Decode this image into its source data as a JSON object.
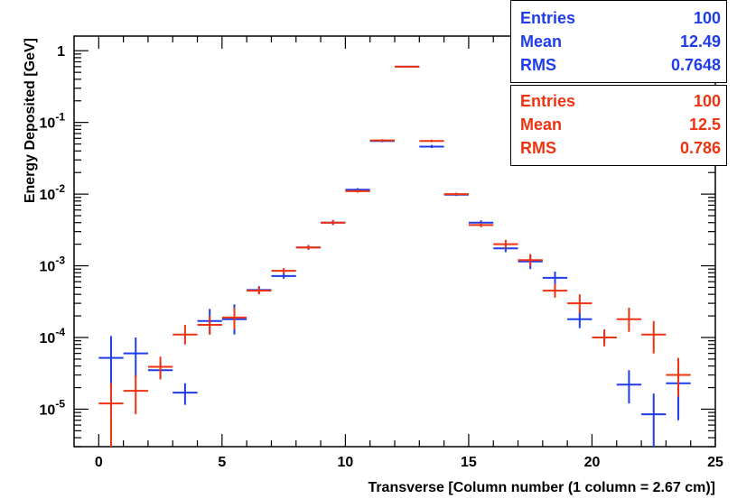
{
  "chart_data": {
    "type": "scatter",
    "xlabel": "Transverse [Column number (1 column = 2.67 cm)]",
    "ylabel": "Energy Deposited [GeV]",
    "xlim": [
      -1,
      25
    ],
    "ylim": [
      3e-06,
      1.6
    ],
    "yscale": "log",
    "x_ticks": [
      "0",
      "5",
      "10",
      "15",
      "20",
      "25"
    ],
    "y_ticks": [
      {
        "value": 1,
        "base": "1",
        "exp": ""
      },
      {
        "value": 0.1,
        "base": "10",
        "exp": "-1"
      },
      {
        "value": 0.01,
        "base": "10",
        "exp": "-2"
      },
      {
        "value": 0.001,
        "base": "10",
        "exp": "-3"
      },
      {
        "value": 0.0001,
        "base": "10",
        "exp": "-4"
      },
      {
        "value": 1e-05,
        "base": "10",
        "exp": "-5"
      }
    ],
    "grid": false,
    "colors": {
      "blue": "#1f3de8",
      "red": "#ee3311"
    },
    "series": [
      {
        "color": "#1f3de8",
        "x": [
          0.5,
          1.5,
          2.5,
          3.5,
          4.5,
          5.5,
          6.5,
          7.5,
          8.5,
          9.5,
          10.5,
          11.5,
          12.5,
          13.5,
          14.5,
          15.5,
          16.5,
          17.5,
          18.5,
          19.5,
          20.5,
          21.5,
          22.5,
          23.5
        ],
        "y": [
          5.2e-05,
          6e-05,
          3.5e-05,
          1.7e-05,
          0.00017,
          0.00018,
          0.00046,
          0.00072,
          0.0018,
          0.004,
          0.0115,
          0.055,
          0.6,
          0.046,
          0.0098,
          0.004,
          0.00175,
          0.00115,
          0.00068,
          0.00018,
          0.0001,
          2.2e-05,
          8.5e-06,
          2.3e-05
        ],
        "yerr_lo": [
          4.4e-05,
          3.2e-05,
          9e-06,
          5.5e-06,
          6e-05,
          7e-05,
          5e-05,
          6e-05,
          0.00013,
          0.0003,
          0.0005,
          0.002,
          0.0,
          0.002,
          0.0004,
          0.00025,
          0.0002,
          0.00025,
          0.00013,
          4.5e-05,
          1.8e-05,
          1e-05,
          5.5e-06,
          1.6e-05
        ],
        "yerr_hi": [
          5.3e-05,
          4e-05,
          1e-05,
          6e-06,
          8e-05,
          0.00011,
          6e-05,
          7e-05,
          0.00015,
          0.00035,
          0.0006,
          0.0025,
          0.0,
          0.0025,
          0.00045,
          0.0003,
          0.00025,
          0.0003,
          0.00015,
          5e-05,
          2e-05,
          1.3e-05,
          8e-06,
          2e-05
        ]
      },
      {
        "color": "#ee3311",
        "x": [
          0.5,
          1.5,
          2.5,
          3.5,
          4.5,
          5.5,
          6.5,
          7.5,
          8.5,
          9.5,
          10.5,
          11.5,
          12.5,
          13.5,
          14.5,
          15.5,
          16.5,
          17.5,
          18.5,
          19.5,
          20.5,
          21.5,
          22.5,
          23.5
        ],
        "y": [
          1.2e-05,
          1.8e-05,
          3.9e-05,
          0.00011,
          0.00015,
          0.00019,
          0.00045,
          0.00085,
          0.0018,
          0.004,
          0.011,
          0.056,
          0.6,
          0.055,
          0.01,
          0.0037,
          0.002,
          0.0012,
          0.00045,
          0.0003,
          0.0001,
          0.00018,
          0.00011,
          3e-05
        ],
        "yerr_lo": [
          9e-06,
          9.5e-06,
          1.3e-05,
          3e-05,
          4e-05,
          6e-05,
          5e-05,
          7e-05,
          0.00012,
          0.00025,
          0.0005,
          0.002,
          0.0,
          0.002,
          0.0004,
          0.00025,
          0.00025,
          0.0002,
          9e-05,
          8e-05,
          2.5e-05,
          6e-05,
          5e-05,
          1.5e-05
        ],
        "yerr_hi": [
          1.1e-05,
          1.2e-05,
          1.5e-05,
          4e-05,
          5e-05,
          7e-05,
          6e-05,
          8e-05,
          0.00014,
          0.0003,
          0.0006,
          0.0025,
          0.0,
          0.0025,
          0.00045,
          0.0003,
          0.0003,
          0.00025,
          0.00011,
          0.0001,
          3e-05,
          8e-05,
          6e-05,
          2.2e-05
        ]
      }
    ]
  },
  "stats": [
    {
      "color": "#1f3de8",
      "rows": [
        {
          "label": "Entries",
          "value": "100"
        },
        {
          "label": "Mean",
          "value": "12.49"
        },
        {
          "label": "RMS",
          "value": "0.7648"
        }
      ]
    },
    {
      "color": "#ee3311",
      "rows": [
        {
          "label": "Entries",
          "value": "100"
        },
        {
          "label": "Mean",
          "value": "12.5"
        },
        {
          "label": "RMS",
          "value": "0.786"
        }
      ]
    }
  ]
}
